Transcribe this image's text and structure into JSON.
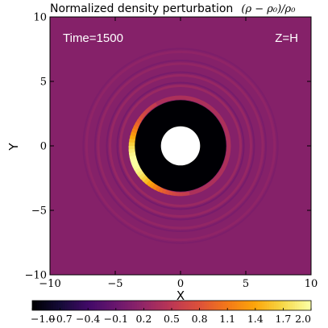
{
  "chart_data": {
    "type": "heatmap",
    "title": "Normalized density perturbation",
    "title_math": "(ρ − ρ₀)/ρ₀",
    "xlabel": "X",
    "ylabel": "Y",
    "xlim": [
      -10,
      10
    ],
    "ylim": [
      -10,
      10
    ],
    "xticks": [
      -10,
      -5,
      0,
      5,
      10
    ],
    "yticks": [
      -10,
      -5,
      0,
      5,
      10
    ],
    "xtick_labels": [
      "−10",
      "−5",
      "0",
      "5",
      "10"
    ],
    "ytick_labels": [
      "−10",
      "−5",
      "0",
      "5",
      "10"
    ],
    "annotations": {
      "time": "Time=1500",
      "z": "Z=H"
    },
    "colorbar": {
      "min": -1.0,
      "max": 2.0,
      "orientation": "horizontal",
      "colormap": "inferno",
      "ticks": [
        -1.0,
        -0.7,
        -0.4,
        -0.1,
        0.2,
        0.5,
        0.8,
        1.1,
        1.4,
        1.7,
        2.0
      ],
      "tick_labels": [
        "−1.0",
        "−0.7",
        "−0.4",
        "−0.1",
        "0.2",
        "0.5",
        "0.8",
        "1.1",
        "1.4",
        "1.7",
        "2.0"
      ]
    },
    "background_value": 0.1,
    "structures": {
      "inner_hole_radius": 1.5,
      "underdense_cavity_radius": 3.5,
      "cavity_value": -1.0,
      "crescent": {
        "radius": 3.7,
        "peak_value": 2.0,
        "peak_angle_deg": 200,
        "angular_width_deg": 55
      },
      "rings": [
        {
          "radius": 4.6,
          "amplitude": 0.12
        },
        {
          "radius": 5.4,
          "amplitude": 0.1
        },
        {
          "radius": 6.3,
          "amplitude": 0.08
        },
        {
          "radius": 7.2,
          "amplitude": 0.06
        }
      ]
    }
  }
}
